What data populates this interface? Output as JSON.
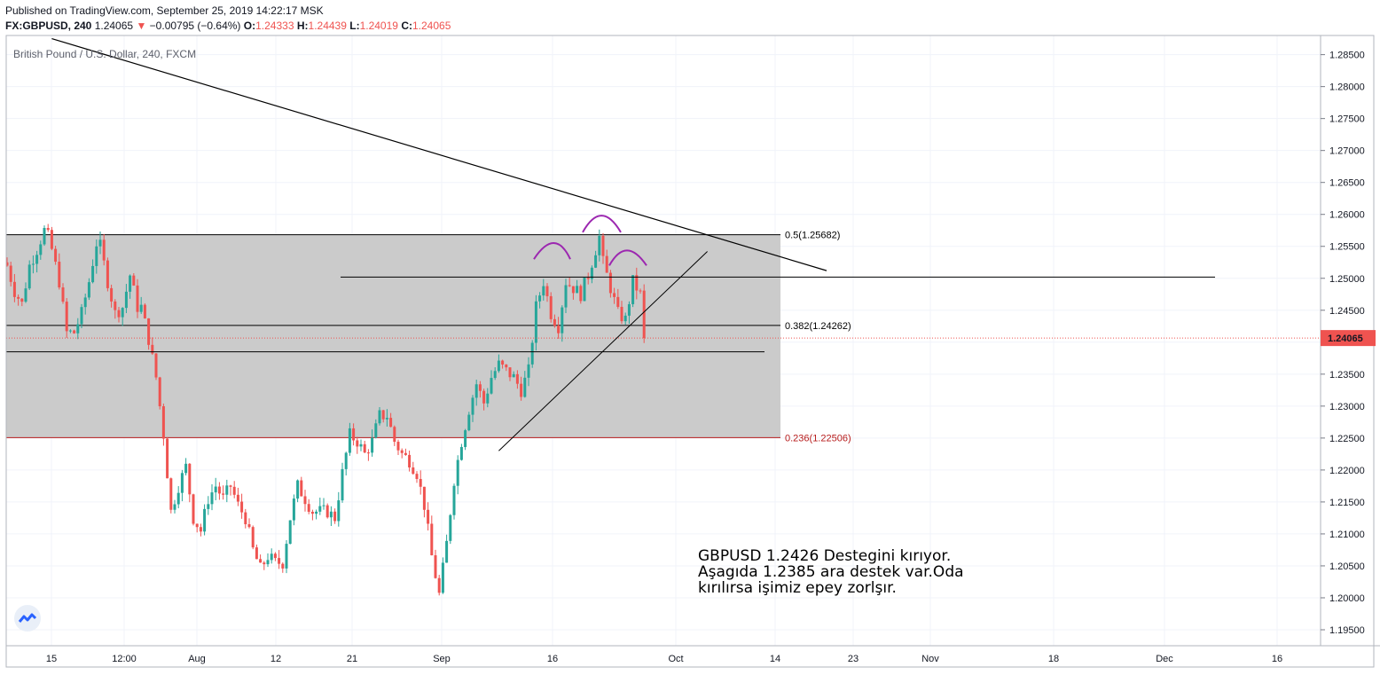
{
  "header": {
    "published": "Published on TradingView.com, September 25, 2019 14:22:17 MSK",
    "symbol": "FX:GBPUSD, 240",
    "last": "1.24065",
    "change": "−0.00795 (−0.64%)",
    "o_label": "O:",
    "o": "1.24333",
    "h_label": "H:",
    "h": "1.24439",
    "l_label": "L:",
    "l": "1.24019",
    "c_label": "C:",
    "c": "1.24065"
  },
  "legend": {
    "title": "British Pound / U.S. Dollar, 240, FXCM"
  },
  "note": {
    "text": "GBPUSD  1.2426 Destegini kırıyor.\nAşagıda 1.2385 ara destek var.Oda\nkırılırsa işimiz epey zorlşır."
  },
  "colors": {
    "up": "#26a69a",
    "down": "#ef5350",
    "fib_zone": "#c8c8c8",
    "hs_curve": "#9c27b0",
    "grid": "#f0f3fa"
  },
  "chart_data": {
    "type": "candlestick",
    "timeframe": "240",
    "y_axis": {
      "ticks": [
        1.285,
        1.28,
        1.275,
        1.27,
        1.265,
        1.26,
        1.255,
        1.25,
        1.245,
        1.24,
        1.235,
        1.23,
        1.225,
        1.22,
        1.215,
        1.21,
        1.205,
        1.2,
        1.195
      ],
      "tick_labels": [
        "1.28500",
        "1.28000",
        "1.27500",
        "1.27000",
        "1.26500",
        "1.26000",
        "1.25500",
        "1.25000",
        "1.24500",
        "1.24000",
        "1.23500",
        "1.23000",
        "1.22500",
        "1.22000",
        "1.21500",
        "1.21000",
        "1.20500",
        "1.20000",
        "1.19500"
      ],
      "range": [
        1.1925,
        1.288
      ]
    },
    "x_axis": {
      "tick_labels": [
        "15",
        "12:00",
        "Aug",
        "12",
        "21",
        "Sep",
        "16",
        "Oct",
        "14",
        "23",
        "Nov",
        "18",
        "Dec",
        "16"
      ]
    },
    "last_price": 1.24065,
    "last_price_label": "1.24065",
    "fib_levels": [
      {
        "ratio": 0.5,
        "price": 1.25682,
        "label": "0.5(1.25682)"
      },
      {
        "ratio": 0.382,
        "price": 1.24262,
        "label": "0.382(1.24262)"
      },
      {
        "ratio": 0.236,
        "price": 1.22506,
        "label": "0.236(1.22506)"
      }
    ],
    "horizontal_lines": [
      1.2502,
      1.2385
    ],
    "close_path": [
      [
        0,
        1.252
      ],
      [
        2,
        1.248
      ],
      [
        4,
        1.246
      ],
      [
        6,
        1.252
      ],
      [
        8,
        1.2545
      ],
      [
        10,
        1.2575
      ],
      [
        11,
        1.2565
      ],
      [
        12,
        1.2545
      ],
      [
        14,
        1.2495
      ],
      [
        16,
        1.2415
      ],
      [
        18,
        1.2415
      ],
      [
        20,
        1.2445
      ],
      [
        22,
        1.2495
      ],
      [
        24,
        1.2555
      ],
      [
        25,
        1.255
      ],
      [
        27,
        1.2495
      ],
      [
        29,
        1.2445
      ],
      [
        31,
        1.2455
      ],
      [
        33,
        1.2505
      ],
      [
        35,
        1.2455
      ],
      [
        36,
        1.2455
      ],
      [
        38,
        1.2405
      ],
      [
        40,
        1.2345
      ],
      [
        42,
        1.2255
      ],
      [
        44,
        1.2135
      ],
      [
        46,
        1.2175
      ],
      [
        48,
        1.2205
      ],
      [
        50,
        1.2125
      ],
      [
        52,
        1.2105
      ],
      [
        54,
        1.2155
      ],
      [
        56,
        1.2175
      ],
      [
        58,
        1.2155
      ],
      [
        60,
        1.2175
      ],
      [
        62,
        1.2145
      ],
      [
        64,
        1.2125
      ],
      [
        66,
        1.2075
      ],
      [
        68,
        1.2045
      ],
      [
        70,
        1.2065
      ],
      [
        72,
        1.2055
      ],
      [
        74,
        1.2055
      ],
      [
        76,
        1.2125
      ],
      [
        78,
        1.2175
      ],
      [
        80,
        1.2155
      ],
      [
        82,
        1.2135
      ],
      [
        84,
        1.2135
      ],
      [
        86,
        1.2135
      ],
      [
        88,
        1.2125
      ],
      [
        90,
        1.2195
      ],
      [
        92,
        1.2255
      ],
      [
        94,
        1.2245
      ],
      [
        96,
        1.2225
      ],
      [
        98,
        1.2245
      ],
      [
        100,
        1.2285
      ],
      [
        102,
        1.2285
      ],
      [
        104,
        1.2245
      ],
      [
        106,
        1.2225
      ],
      [
        108,
        1.2215
      ],
      [
        110,
        1.2195
      ],
      [
        112,
        1.2145
      ],
      [
        114,
        1.2065
      ],
      [
        116,
        1.2005
      ],
      [
        118,
        1.2085
      ],
      [
        120,
        1.2185
      ],
      [
        122,
        1.2245
      ],
      [
        124,
        1.2295
      ],
      [
        126,
        1.2335
      ],
      [
        128,
        1.2305
      ],
      [
        130,
        1.2345
      ],
      [
        132,
        1.2365
      ],
      [
        134,
        1.2355
      ],
      [
        136,
        1.2345
      ],
      [
        138,
        1.2325
      ],
      [
        140,
        1.2355
      ],
      [
        142,
        1.2455
      ],
      [
        144,
        1.2495
      ],
      [
        146,
        1.2445
      ],
      [
        148,
        1.2425
      ],
      [
        150,
        1.2495
      ],
      [
        152,
        1.2485
      ],
      [
        154,
        1.2475
      ],
      [
        156,
        1.2505
      ],
      [
        158,
        1.2545
      ],
      [
        159,
        1.2565
      ],
      [
        160,
        1.2525
      ],
      [
        162,
        1.2485
      ],
      [
        164,
        1.2445
      ],
      [
        166,
        1.2435
      ],
      [
        168,
        1.2495
      ],
      [
        170,
        1.2475
      ],
      [
        171,
        1.24065
      ]
    ],
    "price_marks": [
      1.2575,
      1.2425,
      1.2345,
      1.2285,
      1.2255,
      1.2095,
      1.2145,
      1.2105
    ],
    "trendlines": [
      {
        "from": [
          12,
          1.2875
        ],
        "to": [
          220,
          1.2512
        ]
      },
      {
        "from": [
          132,
          1.223
        ],
        "to": [
          188,
          1.2542
        ]
      }
    ],
    "head_and_shoulders": [
      "left-shoulder",
      "head",
      "right-shoulder"
    ]
  }
}
